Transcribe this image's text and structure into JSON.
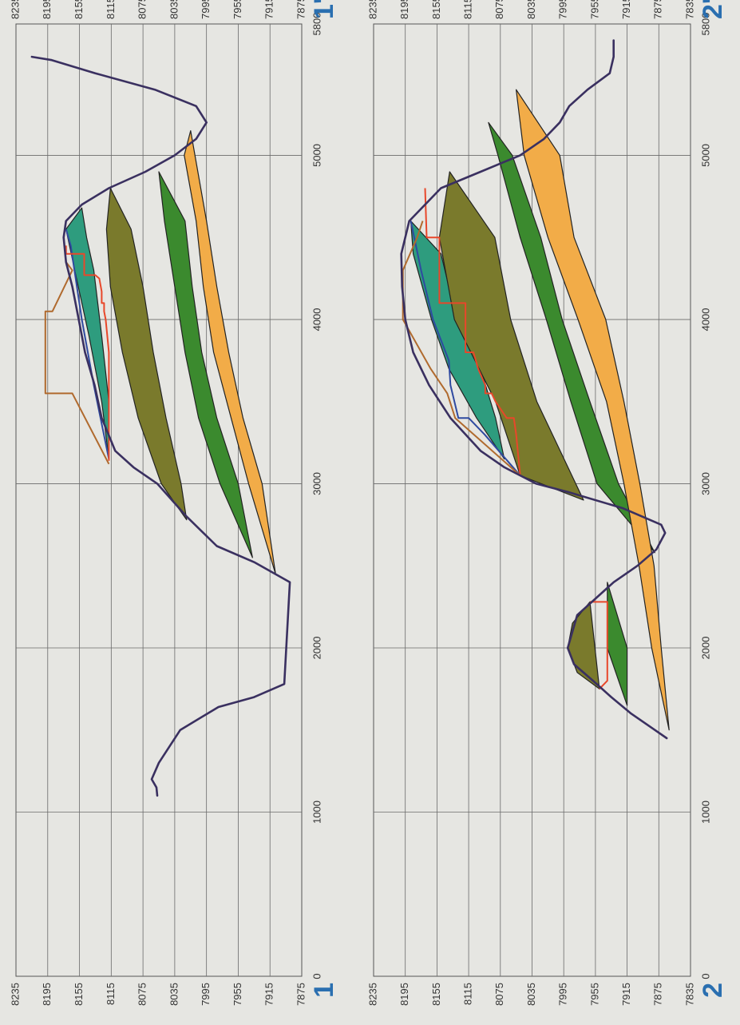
{
  "chart_data": [
    {
      "type": "area",
      "name": "1 - 1'",
      "x_ticks": [
        0,
        1000,
        2000,
        3000,
        4000,
        5000,
        5800
      ],
      "y_ticks": [
        8235,
        8195,
        8155,
        8115,
        8075,
        8035,
        7995,
        7955,
        7915,
        7875
      ],
      "xlim": [
        0,
        5800
      ],
      "ylim": [
        7875,
        8235
      ],
      "grid": true,
      "end_labels": {
        "start": "1",
        "end": "1'"
      },
      "surface": [
        [
          1100,
          8057
        ],
        [
          1150,
          8058
        ],
        [
          1200,
          8064
        ],
        [
          1300,
          8055
        ],
        [
          1500,
          8028
        ],
        [
          1640,
          7980
        ],
        [
          1700,
          7935
        ],
        [
          1780,
          7897
        ],
        [
          2400,
          7890
        ],
        [
          2520,
          7934
        ],
        [
          2620,
          7982
        ],
        [
          2800,
          8020
        ],
        [
          3000,
          8057
        ],
        [
          3100,
          8087
        ],
        [
          3200,
          8110
        ],
        [
          3400,
          8127
        ],
        [
          3600,
          8136
        ],
        [
          3800,
          8148
        ],
        [
          4000,
          8156
        ],
        [
          4200,
          8164
        ],
        [
          4350,
          8172
        ],
        [
          4500,
          8175
        ],
        [
          4600,
          8172
        ],
        [
          4700,
          8152
        ],
        [
          4800,
          8118
        ],
        [
          4900,
          8072
        ],
        [
          5000,
          8035
        ],
        [
          5100,
          8008
        ],
        [
          5200,
          7995
        ],
        [
          5300,
          8008
        ],
        [
          5400,
          8060
        ],
        [
          5500,
          8135
        ],
        [
          5580,
          8190
        ],
        [
          5600,
          8215
        ]
      ],
      "layers": [
        {
          "color": "#2e9c7e",
          "top": [
            [
              3150,
              8118
            ],
            [
              3500,
              8127
            ],
            [
              3900,
              8143
            ],
            [
              4300,
              8161
            ],
            [
              4550,
              8172
            ],
            [
              4680,
              8152
            ]
          ],
          "bottom": [
            [
              3150,
              8118
            ],
            [
              3500,
              8118
            ],
            [
              3900,
              8127
            ],
            [
              4300,
              8137
            ],
            [
              4500,
              8146
            ],
            [
              4680,
              8152
            ]
          ]
        },
        {
          "color": "#7a7a2c",
          "top": [
            [
              2780,
              8020
            ],
            [
              3000,
              8052
            ],
            [
              3400,
              8081
            ],
            [
              3800,
              8101
            ],
            [
              4200,
              8116
            ],
            [
              4550,
              8121
            ],
            [
              4800,
              8116
            ]
          ],
          "bottom": [
            [
              2780,
              8020
            ],
            [
              3000,
              8027
            ],
            [
              3400,
              8046
            ],
            [
              3800,
              8062
            ],
            [
              4200,
              8075
            ],
            [
              4550,
              8090
            ],
            [
              4800,
              8116
            ]
          ]
        },
        {
          "color": "#3b8a2e",
          "top": [
            [
              2550,
              7937
            ],
            [
              3000,
              7978
            ],
            [
              3400,
              8005
            ],
            [
              3800,
              8022
            ],
            [
              4200,
              8035
            ],
            [
              4600,
              8048
            ],
            [
              4900,
              8055
            ]
          ],
          "bottom": [
            [
              2550,
              7937
            ],
            [
              3000,
              7955
            ],
            [
              3400,
              7982
            ],
            [
              3800,
              8001
            ],
            [
              4200,
              8013
            ],
            [
              4600,
              8022
            ],
            [
              4900,
              8055
            ]
          ]
        },
        {
          "color": "#f2ac48",
          "top": [
            [
              2450,
              7908
            ],
            [
              3000,
              7942
            ],
            [
              3400,
              7964
            ],
            [
              3800,
              7986
            ],
            [
              4200,
              7999
            ],
            [
              4600,
              8008
            ],
            [
              5000,
              8023
            ],
            [
              5150,
              8015
            ]
          ],
          "bottom": [
            [
              2450,
              7908
            ],
            [
              3000,
              7925
            ],
            [
              3400,
              7949
            ],
            [
              3800,
              7967
            ],
            [
              4200,
              7982
            ],
            [
              4600,
              7995
            ],
            [
              5150,
              8015
            ]
          ]
        }
      ],
      "lines": [
        {
          "color": "#2f4aa0",
          "points": [
            [
              3150,
              8118
            ],
            [
              3600,
              8137
            ],
            [
              4000,
              8152
            ],
            [
              4450,
              8166
            ],
            [
              4550,
              8172
            ]
          ]
        },
        {
          "color": "#e8472a",
          "points": [
            [
              3140,
              8118
            ],
            [
              3700,
              8118
            ],
            [
              3800,
              8118
            ],
            [
              4000,
              8122
            ],
            [
              4050,
              8124
            ],
            [
              4100,
              8124
            ],
            [
              4100,
              8127
            ],
            [
              4170,
              8127
            ],
            [
              4250,
              8130
            ],
            [
              4270,
              8135
            ],
            [
              4270,
              8149
            ],
            [
              4400,
              8149
            ],
            [
              4400,
              8172
            ],
            [
              4450,
              8172
            ]
          ]
        },
        {
          "color": "#b06a2e",
          "points": [
            [
              3120,
              8118
            ],
            [
              3550,
              8164
            ],
            [
              3550,
              8198
            ],
            [
              4050,
              8198
            ],
            [
              4050,
              8189
            ],
            [
              4300,
              8164
            ],
            [
              4350,
              8172
            ]
          ]
        }
      ]
    },
    {
      "type": "area",
      "name": "2 - 2'",
      "x_ticks": [
        0,
        1000,
        2000,
        3000,
        4000,
        5000,
        5800
      ],
      "y_ticks": [
        8235,
        8195,
        8155,
        8115,
        8075,
        8035,
        7995,
        7955,
        7915,
        7875,
        7835
      ],
      "xlim": [
        0,
        5800
      ],
      "ylim": [
        7835,
        8235
      ],
      "grid": true,
      "end_labels": {
        "start": "2",
        "end": "2'"
      },
      "surface": [
        [
          1450,
          7865
        ],
        [
          1500,
          7880
        ],
        [
          1600,
          7910
        ],
        [
          1700,
          7935
        ],
        [
          1800,
          7958
        ],
        [
          1900,
          7982
        ],
        [
          2000,
          7990
        ],
        [
          2200,
          7978
        ],
        [
          2400,
          7932
        ],
        [
          2500,
          7902
        ],
        [
          2600,
          7878
        ],
        [
          2700,
          7867
        ],
        [
          2750,
          7872
        ],
        [
          2850,
          7920
        ],
        [
          2950,
          7990
        ],
        [
          3000,
          8030
        ],
        [
          3100,
          8070
        ],
        [
          3200,
          8100
        ],
        [
          3400,
          8138
        ],
        [
          3600,
          8165
        ],
        [
          3800,
          8185
        ],
        [
          4000,
          8195
        ],
        [
          4200,
          8199
        ],
        [
          4400,
          8200
        ],
        [
          4600,
          8190
        ],
        [
          4800,
          8150
        ],
        [
          4900,
          8100
        ],
        [
          5000,
          8050
        ],
        [
          5100,
          8020
        ],
        [
          5200,
          8000
        ],
        [
          5300,
          7988
        ],
        [
          5400,
          7965
        ],
        [
          5500,
          7937
        ],
        [
          5600,
          7932
        ],
        [
          5700,
          7932
        ]
      ],
      "layers": [
        {
          "color": "#2e9c7e",
          "top": [
            [
              3150,
              8070
            ],
            [
              3400,
              8105
            ],
            [
              3700,
              8140
            ],
            [
              4000,
              8162
            ],
            [
              4400,
              8185
            ],
            [
              4600,
              8188
            ]
          ],
          "bottom": [
            [
              3150,
              8070
            ],
            [
              3400,
              8081
            ],
            [
              3700,
              8100
            ],
            [
              4000,
              8130
            ],
            [
              4400,
              8150
            ],
            [
              4600,
              8188
            ]
          ]
        },
        {
          "color": "#7a7a2c",
          "top": [
            [
              3050,
              8050
            ],
            [
              3500,
              8081
            ],
            [
              4000,
              8133
            ],
            [
              4500,
              8152
            ],
            [
              4900,
              8139
            ]
          ],
          "bottom": [
            [
              2900,
              7970
            ],
            [
              3500,
              8029
            ],
            [
              4000,
              8062
            ],
            [
              4500,
              8082
            ],
            [
              4900,
              8139
            ]
          ]
        },
        {
          "color": "#3b8a2e",
          "top": [
            [
              2580,
              7880
            ],
            [
              3000,
              7953
            ],
            [
              3500,
              7986
            ],
            [
              4000,
              8017
            ],
            [
              4500,
              8050
            ],
            [
              5000,
              8078
            ],
            [
              5200,
              8090
            ]
          ],
          "bottom": [
            [
              2580,
              7880
            ],
            [
              3000,
              7926
            ],
            [
              3500,
              7962
            ],
            [
              4000,
              7997
            ],
            [
              4500,
              8024
            ],
            [
              5000,
              8060
            ],
            [
              5200,
              8090
            ]
          ]
        },
        {
          "color": "#f2ac48",
          "top": [
            [
              1500,
              7862
            ],
            [
              2000,
              7884
            ],
            [
              2500,
              7900
            ],
            [
              3000,
              7919
            ],
            [
              3500,
              7941
            ],
            [
              4000,
              7977
            ],
            [
              4500,
              8015
            ],
            [
              5000,
              8045
            ],
            [
              5400,
              8055
            ]
          ],
          "bottom": [
            [
              1500,
              7862
            ],
            [
              2000,
              7872
            ],
            [
              2500,
              7881
            ],
            [
              3000,
              7899
            ],
            [
              3500,
              7919
            ],
            [
              4000,
              7942
            ],
            [
              4500,
              7982
            ],
            [
              5000,
              8000
            ],
            [
              5400,
              8055
            ]
          ]
        },
        {
          "color": "#3b8a2e",
          "top": [
            [
              1650,
              7915
            ],
            [
              2000,
              7940
            ],
            [
              2400,
              7940
            ]
          ],
          "bottom": [
            [
              1650,
              7915
            ],
            [
              2000,
              7915
            ],
            [
              2400,
              7940
            ]
          ]
        },
        {
          "color": "#7a7a2c",
          "top": [
            [
              1750,
              7950
            ],
            [
              1850,
              7978
            ],
            [
              2000,
              7990
            ],
            [
              2150,
              7984
            ],
            [
              2280,
              7962
            ]
          ],
          "bottom": [
            [
              1750,
              7950
            ],
            [
              2280,
              7962
            ]
          ]
        }
      ],
      "lines": [
        {
          "color": "#2f4aa0",
          "points": [
            [
              3050,
              8050
            ],
            [
              3300,
              8095
            ],
            [
              3400,
              8115
            ],
            [
              3400,
              8128
            ],
            [
              3600,
              8138
            ],
            [
              3750,
              8140
            ],
            [
              4000,
              8160
            ],
            [
              4300,
              8175
            ],
            [
              4600,
              8188
            ]
          ]
        },
        {
          "color": "#e8472a",
          "points": [
            [
              3050,
              8050
            ],
            [
              3300,
              8055
            ],
            [
              3400,
              8058
            ],
            [
              3400,
              8067
            ],
            [
              3500,
              8081
            ],
            [
              3550,
              8086
            ],
            [
              3550,
              8094
            ],
            [
              3600,
              8094
            ],
            [
              3700,
              8103
            ],
            [
              3800,
              8109
            ],
            [
              3800,
              8119
            ],
            [
              4100,
              8119
            ],
            [
              4100,
              8152
            ],
            [
              4500,
              8152
            ],
            [
              4500,
              8168
            ],
            [
              4800,
              8170
            ]
          ]
        },
        {
          "color": "#b06a2e",
          "points": [
            [
              3050,
              8050
            ],
            [
              3400,
              8132
            ],
            [
              3550,
              8142
            ],
            [
              3700,
              8163
            ],
            [
              4000,
              8198
            ],
            [
              4300,
              8198
            ],
            [
              4500,
              8180
            ],
            [
              4600,
              8173
            ]
          ]
        },
        {
          "color": "#e8472a",
          "points": [
            [
              1750,
              7950
            ],
            [
              1800,
              7940
            ],
            [
              2280,
              7940
            ],
            [
              2280,
              7962
            ]
          ]
        }
      ]
    }
  ]
}
